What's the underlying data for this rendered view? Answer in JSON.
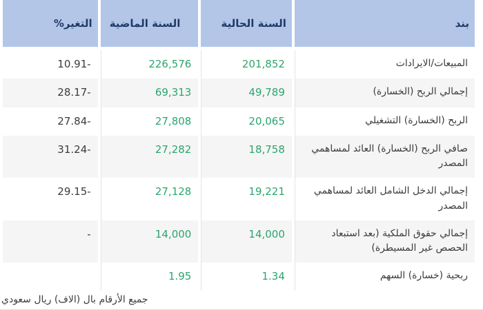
{
  "table": {
    "headers": {
      "item": "بند",
      "current_year": "السنة الحالية",
      "previous_year": "السنة الماضية",
      "change_pct": "التغير%"
    },
    "rows": [
      {
        "item": "المبيعات/الايرادات",
        "current": "201,852",
        "previous": "226,576",
        "change": "-10.91"
      },
      {
        "item": "إجمالي الربح (الخسارة)",
        "current": "49,789",
        "previous": "69,313",
        "change": "-28.17"
      },
      {
        "item": "الربح (الخسارة) التشغيلي",
        "current": "20,065",
        "previous": "27,808",
        "change": "-27.84"
      },
      {
        "item": "صافي الربح (الخسارة) العائد لمساهمي المصدر",
        "current": "18,758",
        "previous": "27,282",
        "change": "-31.24"
      },
      {
        "item": "إجمالي الدخل الشامل العائد لمساهمي المصدر",
        "current": "19,221",
        "previous": "27,128",
        "change": "-29.15"
      },
      {
        "item": "إجمالي حقوق الملكية (بعد استبعاد الحصص غير المسيطرة)",
        "current": "14,000",
        "previous": "14,000",
        "change": "-"
      },
      {
        "item": "ربحية (خسارة) السهم",
        "current": "1.34",
        "previous": "1.95",
        "change": ""
      }
    ]
  },
  "footer": {
    "note": "جميع الأرقام بال (الاف) ريال سعودي"
  },
  "colors": {
    "header_bg": "#b3c6e8",
    "header_text": "#1f3a66",
    "value_green": "#2ba56e",
    "body_text": "#3c3c3c",
    "alt_row_bg": "#f5f5f5",
    "separator": "#e4e4e4"
  }
}
